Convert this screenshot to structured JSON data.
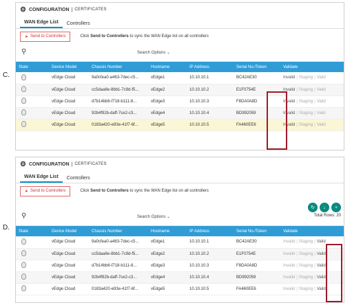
{
  "options": [
    {
      "letter": "C.",
      "header": {
        "title": "CONFIGURATION",
        "subtitle": "CERTIFICATES"
      },
      "tabs": [
        {
          "label": "WAN Edge List"
        },
        {
          "label": "Controllers"
        }
      ],
      "send_button": "Send to Controllers",
      "hint_prefix": "Click",
      "hint_bold": "Send to Controllers",
      "hint_suffix": "to sync the WAN Edge list on all controllers",
      "search_options": "Search Options",
      "total_rows": "",
      "columns": [
        "State",
        "Device Model",
        "Chassis Number",
        "Hostname",
        "IP Address",
        "Serial No./Token",
        "Validate"
      ],
      "rows": [
        {
          "model": "vEdge Cloud",
          "chassis": "9a0cfea0-a463-7dec-c5...",
          "host": "vEdge1",
          "ip": "10.10.10.1",
          "serial": "BC42AE30",
          "v1": "Invalid",
          "v2": "Staging",
          "v3": "Valid"
        },
        {
          "model": "vEdge Cloud",
          "chassis": "cc5daa8e-8bb1-7c9d-f5...",
          "host": "vEdge2",
          "ip": "10.10.10.2",
          "serial": "E1F0754E",
          "v1": "Invalid",
          "v2": "Staging",
          "v3": "Valid"
        },
        {
          "model": "vEdge Cloud",
          "chassis": "d7b14bb6-f718-b111-8...",
          "host": "vEdge3",
          "ip": "10.10.10.3",
          "serial": "F8DA0A8D",
          "v1": "Invalid",
          "v2": "Staging",
          "v3": "Valid"
        },
        {
          "model": "vEdge Cloud",
          "chassis": "92b4f92b-daff-7ce2-c3...",
          "host": "vEdge4",
          "ip": "10.10.10.4",
          "serial": "BD992059",
          "v1": "Invalid",
          "v2": "Staging",
          "v3": "Valid"
        },
        {
          "model": "vEdge Cloud",
          "chassis": "0183a420-e93e-41f7-6f...",
          "host": "vEdge5",
          "ip": "10.10.10.5",
          "serial": "FA460EE6",
          "v1": "Invalid",
          "v2": "Staging",
          "v3": "Valid"
        }
      ]
    },
    {
      "letter": "D.",
      "header": {
        "title": "CONFIGURATION",
        "subtitle": "CERTIFICATES"
      },
      "tabs": [
        {
          "label": "WAN Edge List"
        },
        {
          "label": "Controllers"
        }
      ],
      "send_button": "Send to Controllers",
      "hint_prefix": "Click",
      "hint_bold": "Send to Controllers",
      "hint_suffix": "to sync the WAN Edge list on all controllers",
      "search_options": "Search Options",
      "total_rows": "Total Rows: 20",
      "columns": [
        "State",
        "Device Model",
        "Chassis Number",
        "Hostname",
        "IP Address",
        "Serial No./Token",
        "Validate"
      ],
      "rows": [
        {
          "model": "vEdge Cloud",
          "chassis": "9a0cfea0-a463-7dec-c5...",
          "host": "vEdge1",
          "ip": "10.10.10.1",
          "serial": "BC42AE30",
          "v1": "Invalid",
          "v2": "Staging",
          "v3": "Valid"
        },
        {
          "model": "vEdge Cloud",
          "chassis": "cc5daa8e-8bb1-7c9d-f5...",
          "host": "vEdge2",
          "ip": "10.10.10.2",
          "serial": "E1F0754E",
          "v1": "Invalid",
          "v2": "Staging",
          "v3": "Valid"
        },
        {
          "model": "vEdge Cloud",
          "chassis": "d7b14bb6-f718-b111-8...",
          "host": "vEdge3",
          "ip": "10.10.10.3",
          "serial": "F8DA0A8D",
          "v1": "Invalid",
          "v2": "Staging",
          "v3": "Valid"
        },
        {
          "model": "vEdge Cloud",
          "chassis": "92b4f92b-daff-7ce2-c3...",
          "host": "vEdge4",
          "ip": "10.10.10.4",
          "serial": "BD992059",
          "v1": "Invalid",
          "v2": "Staging",
          "v3": "Valid"
        },
        {
          "model": "vEdge Cloud",
          "chassis": "0183a420-e93e-41f7-6f...",
          "host": "vEdge5",
          "ip": "10.10.10.5",
          "serial": "FA460EE6",
          "v1": "Invalid",
          "v2": "Staging",
          "v3": "Valid"
        }
      ]
    }
  ],
  "icons": {
    "gear": "gear-icon",
    "search": "search-icon",
    "refresh": "refresh-icon",
    "download": "download-icon",
    "add": "add-icon"
  },
  "colors": {
    "header_blue": "#2f9cd6",
    "tab_accent": "#0b8fc6",
    "highlight_box": "#a0182a",
    "circle_btn": "#0a8a7f"
  }
}
